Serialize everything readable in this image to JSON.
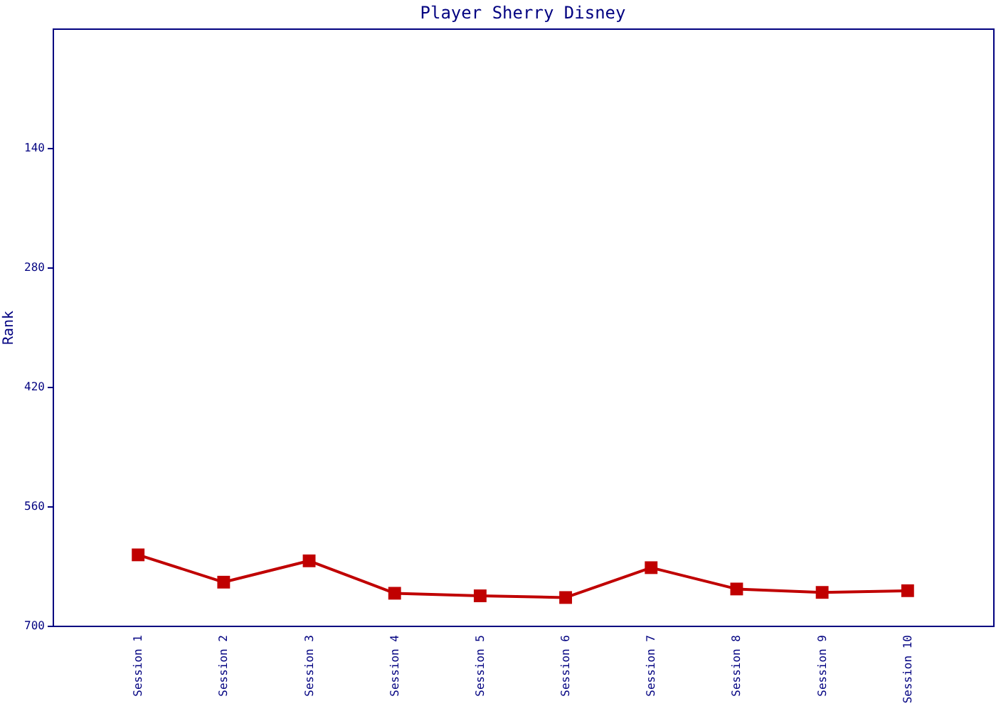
{
  "chart_data": {
    "type": "line",
    "title": "Player Sherry Disney",
    "ylabel": "Rank",
    "categories": [
      "Session 1",
      "Session 2",
      "Session 3",
      "Session 4",
      "Session 5",
      "Session 6",
      "Session 7",
      "Session 8",
      "Session 9",
      "Session 10"
    ],
    "series": [
      {
        "color": "#c00000",
        "values": [
          617,
          649,
          624,
          662,
          665,
          667,
          632,
          657,
          661,
          659
        ]
      }
    ],
    "ylim": [
      700,
      0
    ],
    "yticks": [
      140,
      280,
      420,
      560,
      700
    ],
    "marker": "square",
    "grid": false,
    "legend": false
  }
}
